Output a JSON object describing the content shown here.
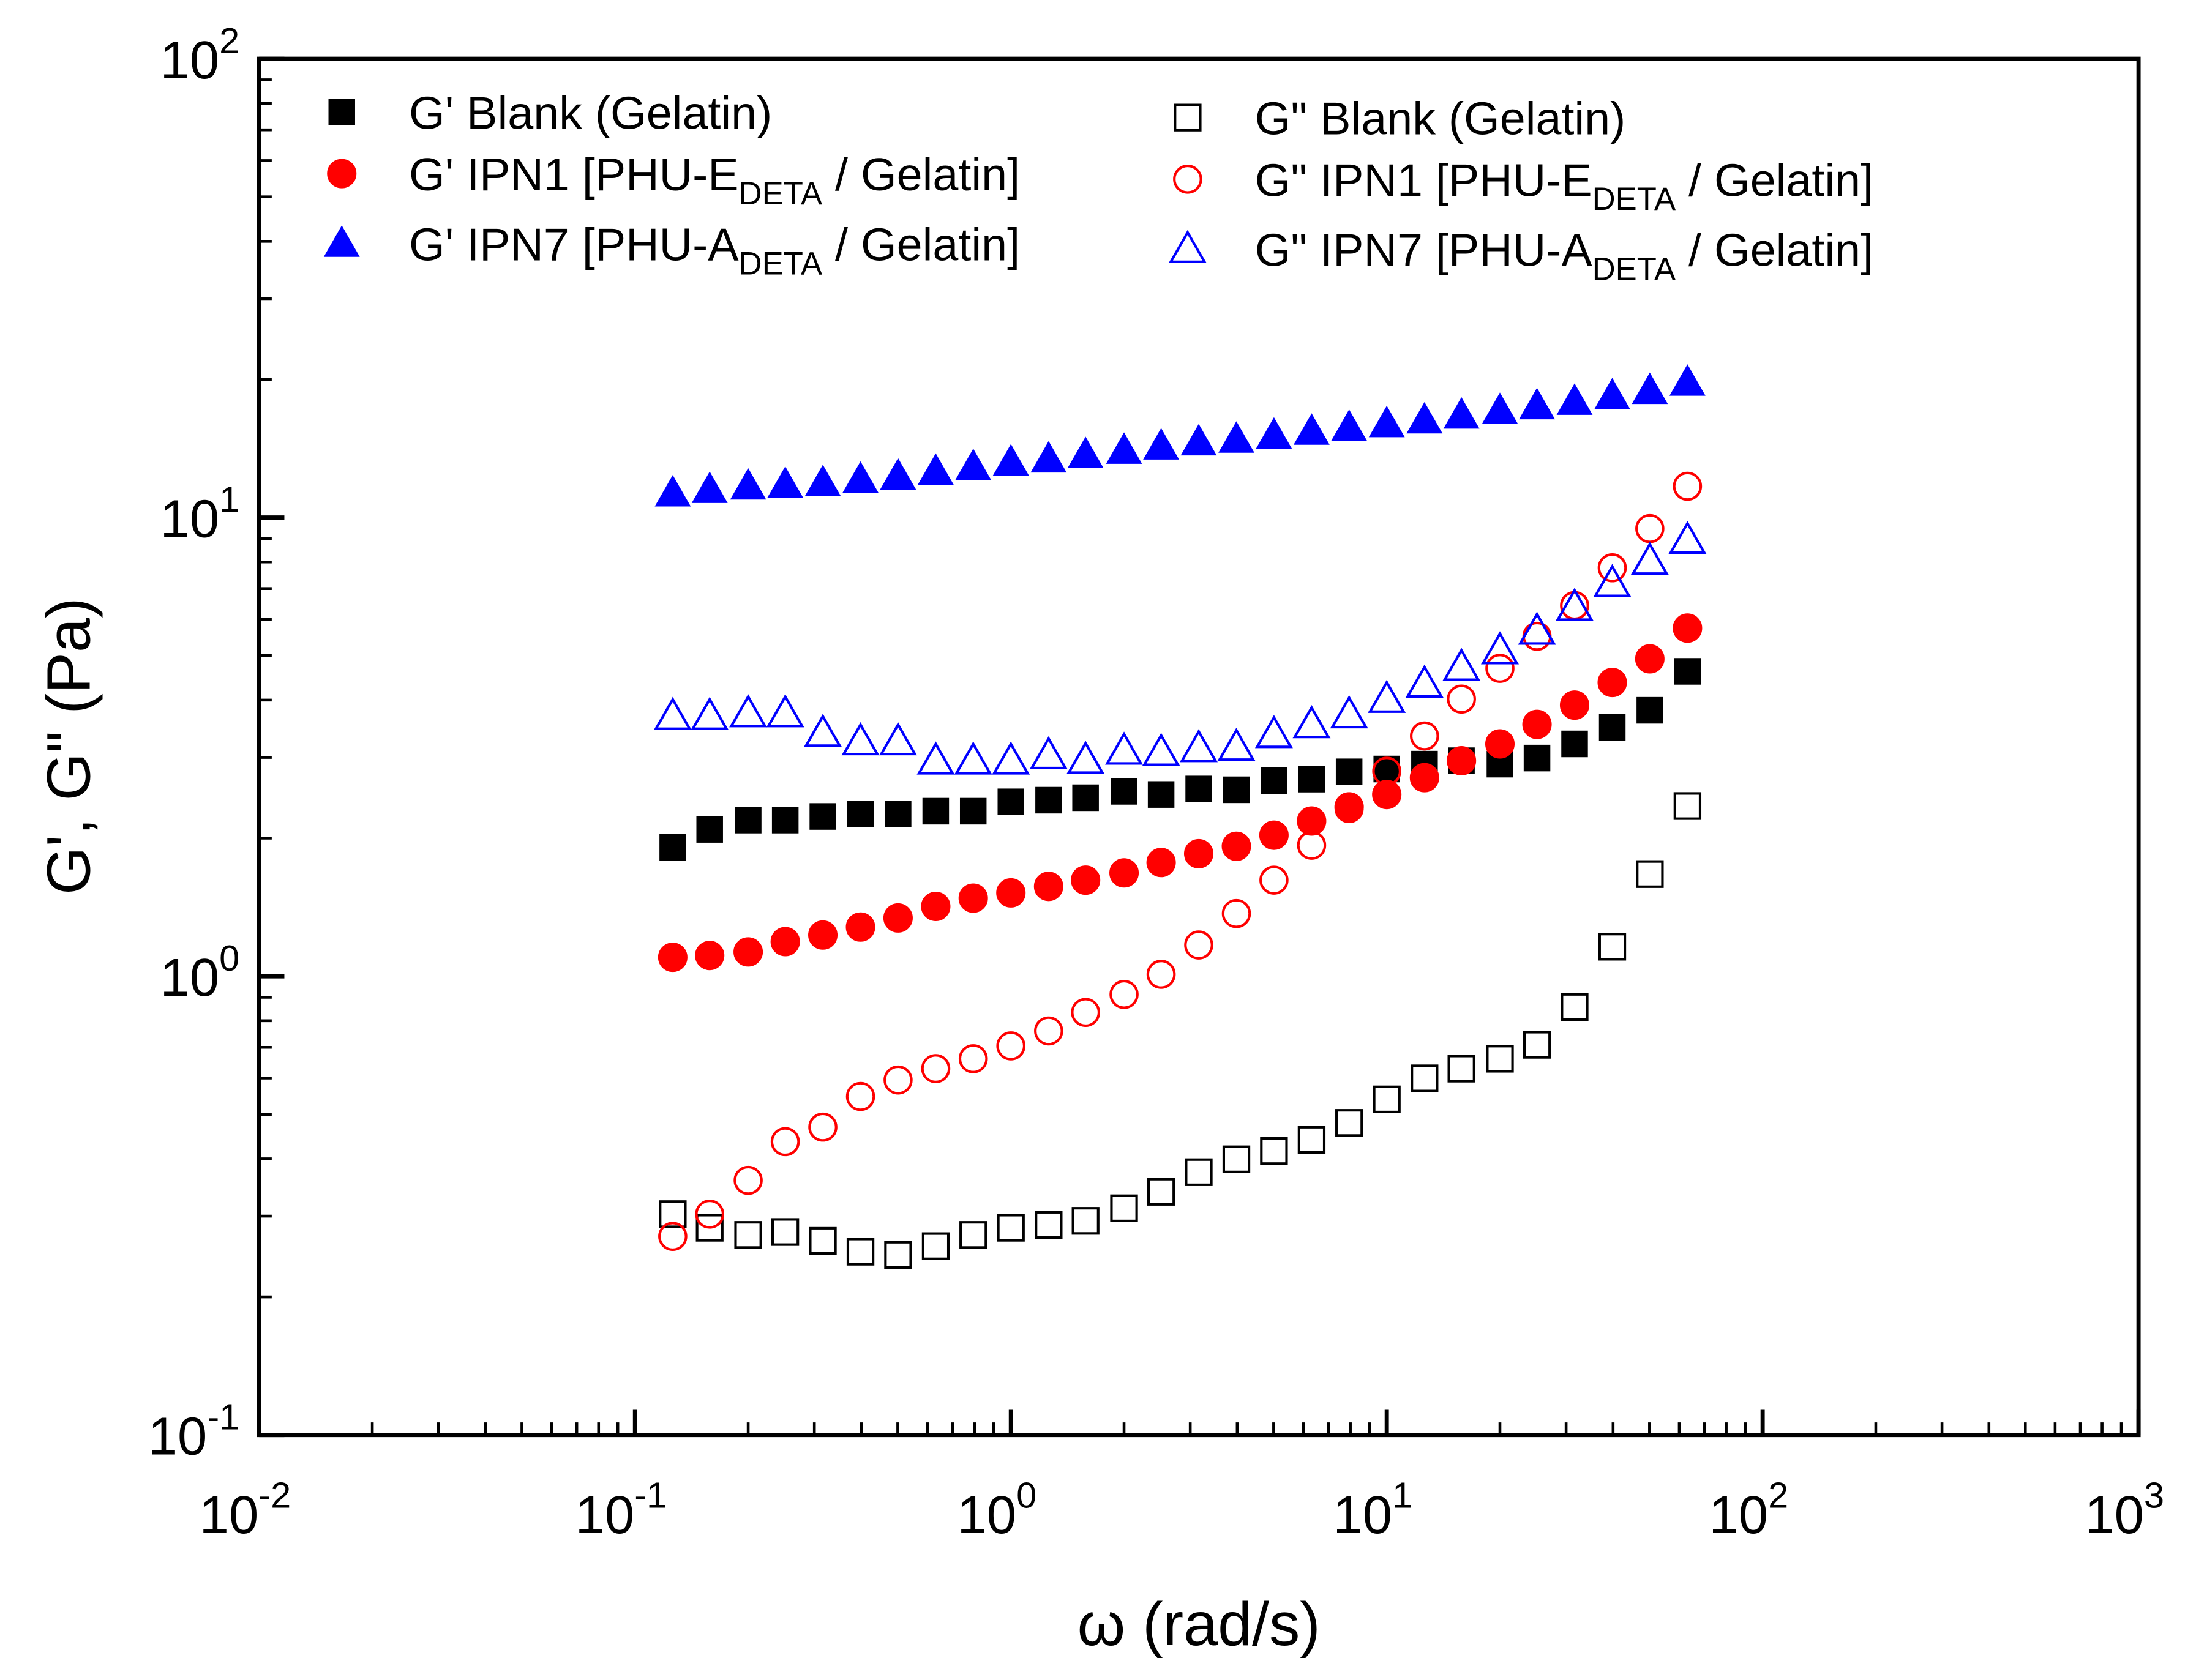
{
  "chart_data": {
    "type": "scatter",
    "xscale": "log",
    "yscale": "log",
    "xlim": [
      0.01,
      1000
    ],
    "ylim": [
      0.1,
      100
    ],
    "xlabel": "ω (rad/s)",
    "ylabel": "G', G\" (Pa)",
    "x_ticks": [
      {
        "base": "10",
        "exp": "-2",
        "value": 0.01
      },
      {
        "base": "10",
        "exp": "-1",
        "value": 0.1
      },
      {
        "base": "10",
        "exp": "0",
        "value": 1
      },
      {
        "base": "10",
        "exp": "1",
        "value": 10
      },
      {
        "base": "10",
        "exp": "2",
        "value": 100
      },
      {
        "base": "10",
        "exp": "3",
        "value": 1000
      }
    ],
    "y_ticks": [
      {
        "base": "10",
        "exp": "-1",
        "value": 0.1
      },
      {
        "base": "10",
        "exp": "0",
        "value": 1
      },
      {
        "base": "10",
        "exp": "1",
        "value": 10
      },
      {
        "base": "10",
        "exp": "2",
        "value": 100
      }
    ],
    "legend_placement": "top",
    "x": [
      0.126,
      0.158,
      0.2,
      0.251,
      0.316,
      0.398,
      0.501,
      0.631,
      0.794,
      1.0,
      1.26,
      1.58,
      2.0,
      2.51,
      3.16,
      3.98,
      5.01,
      6.31,
      7.94,
      10.0,
      12.6,
      15.8,
      20.0,
      25.1,
      31.6,
      39.8,
      50.1,
      63.1
    ],
    "series": [
      {
        "name": "G' Blank (Gelatin)",
        "label": {
          "pre": "G' Blank (Gelatin)",
          "sub": "",
          "post": ""
        },
        "marker": "square",
        "filled": true,
        "color": "#000000",
        "values": [
          1.91,
          2.09,
          2.19,
          2.19,
          2.23,
          2.26,
          2.26,
          2.29,
          2.29,
          2.4,
          2.42,
          2.45,
          2.53,
          2.49,
          2.56,
          2.55,
          2.67,
          2.69,
          2.79,
          2.83,
          2.9,
          2.95,
          2.9,
          2.99,
          3.21,
          3.49,
          3.8,
          4.62
        ]
      },
      {
        "name": "G' IPN1 [PHU-E DETA / Gelatin]",
        "label": {
          "pre": "G' IPN1 [PHU-E",
          "sub": "DETA",
          "post": " / Gelatin]"
        },
        "marker": "circle",
        "filled": true,
        "color": "#ff0000",
        "values": [
          1.1,
          1.11,
          1.13,
          1.19,
          1.23,
          1.28,
          1.34,
          1.42,
          1.48,
          1.52,
          1.57,
          1.62,
          1.68,
          1.77,
          1.85,
          1.92,
          2.03,
          2.18,
          2.34,
          2.49,
          2.71,
          2.95,
          3.21,
          3.54,
          3.9,
          4.37,
          4.92,
          5.74
        ]
      },
      {
        "name": "G' IPN7 [PHU-A DETA / Gelatin]",
        "label": {
          "pre": "G' IPN7 [PHU-A",
          "sub": "DETA",
          "post": " / Gelatin]"
        },
        "marker": "triangle",
        "filled": true,
        "color": "#0000ff",
        "values": [
          11.3,
          11.5,
          11.7,
          11.8,
          11.9,
          12.1,
          12.3,
          12.6,
          12.9,
          13.2,
          13.4,
          13.7,
          14.0,
          14.3,
          14.6,
          14.8,
          15.1,
          15.4,
          15.7,
          16.0,
          16.3,
          16.7,
          17.1,
          17.5,
          17.9,
          18.4,
          18.9,
          19.7
        ]
      },
      {
        "name": "G\" Blank (Gelatin)",
        "label": {
          "pre": "G\" Blank (Gelatin)",
          "sub": "",
          "post": ""
        },
        "marker": "square",
        "filled": false,
        "color": "#000000",
        "values": [
          0.303,
          0.283,
          0.273,
          0.277,
          0.265,
          0.251,
          0.247,
          0.258,
          0.273,
          0.283,
          0.287,
          0.293,
          0.312,
          0.339,
          0.374,
          0.399,
          0.416,
          0.44,
          0.479,
          0.539,
          0.599,
          0.629,
          0.661,
          0.709,
          0.857,
          1.16,
          1.67,
          2.35
        ]
      },
      {
        "name": "G\" IPN1 [PHU-E DETA / Gelatin]",
        "label": {
          "pre": "G\" IPN1 [PHU-E",
          "sub": "DETA",
          "post": " / Gelatin]"
        },
        "marker": "circle",
        "filled": false,
        "color": "#ff0000",
        "values": [
          0.271,
          0.303,
          0.359,
          0.436,
          0.469,
          0.547,
          0.594,
          0.629,
          0.661,
          0.705,
          0.76,
          0.834,
          0.913,
          1.01,
          1.17,
          1.37,
          1.62,
          1.93,
          2.32,
          2.8,
          3.34,
          4.02,
          4.69,
          5.51,
          6.43,
          7.77,
          9.46,
          11.7
        ]
      },
      {
        "name": "G\" IPN7 [PHU-A DETA / Gelatin]",
        "label": {
          "pre": "G\" IPN7 [PHU-A",
          "sub": "DETA",
          "post": " / Gelatin]"
        },
        "marker": "triangle",
        "filled": false,
        "color": "#0000ff",
        "values": [
          3.69,
          3.69,
          3.74,
          3.74,
          3.39,
          3.25,
          3.25,
          2.95,
          2.95,
          2.95,
          3.03,
          2.96,
          3.1,
          3.08,
          3.14,
          3.16,
          3.37,
          3.54,
          3.72,
          4.02,
          4.34,
          4.72,
          5.13,
          5.66,
          6.38,
          7.19,
          8.04,
          8.93
        ]
      }
    ]
  }
}
